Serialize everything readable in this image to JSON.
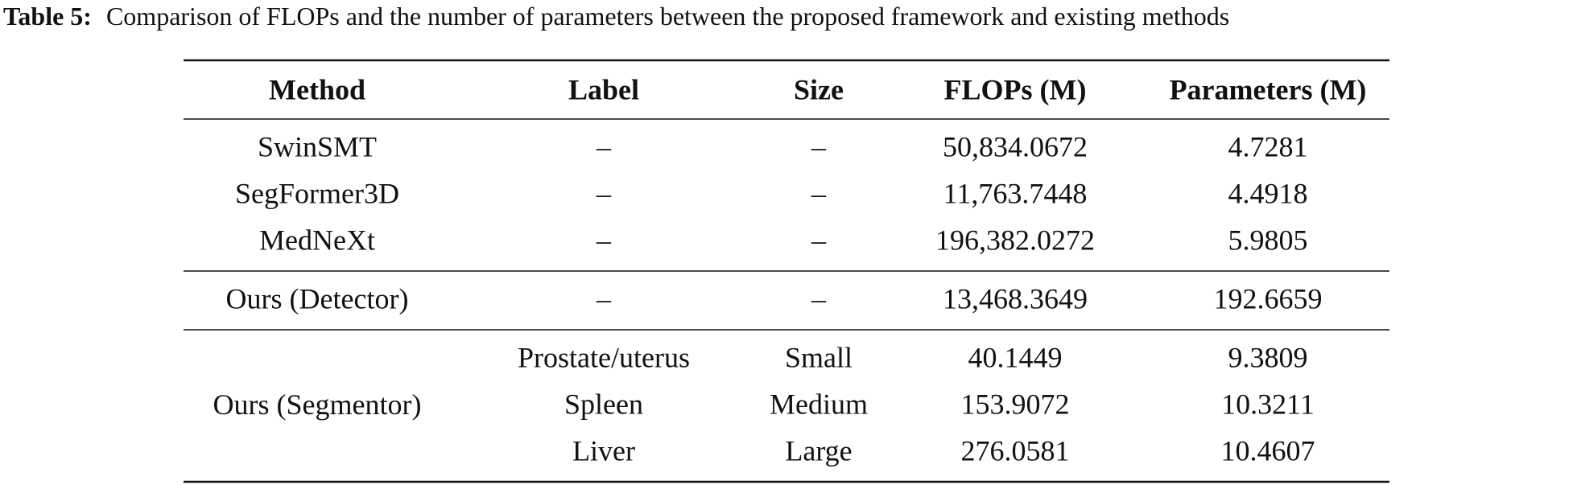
{
  "caption": {
    "label": "Table 5:",
    "text": "Comparison of FLOPs and the number of parameters between the proposed framework and existing methods"
  },
  "table": {
    "header": [
      "Method",
      "Label",
      "Size",
      "FLOPs (M)",
      "Parameters (M)"
    ],
    "groups": [
      {
        "rows": [
          [
            "SwinSMT",
            "–",
            "–",
            "50,834.0672",
            "4.7281"
          ],
          [
            "SegFormer3D",
            "–",
            "–",
            "11,763.7448",
            "4.4918"
          ],
          [
            "MedNeXt",
            "–",
            "–",
            "196,382.0272",
            "5.9805"
          ]
        ]
      },
      {
        "rows": [
          [
            "Ours (Detector)",
            "–",
            "–",
            "13,468.3649",
            "192.6659"
          ]
        ]
      },
      {
        "method": "Ours (Segmentor)",
        "rows": [
          [
            "Prostate/uterus",
            "Small",
            "40.1449",
            "9.3809"
          ],
          [
            "Spleen",
            "Medium",
            "153.9072",
            "10.3211"
          ],
          [
            "Liver",
            "Large",
            "276.0581",
            "10.4607"
          ]
        ]
      }
    ]
  }
}
